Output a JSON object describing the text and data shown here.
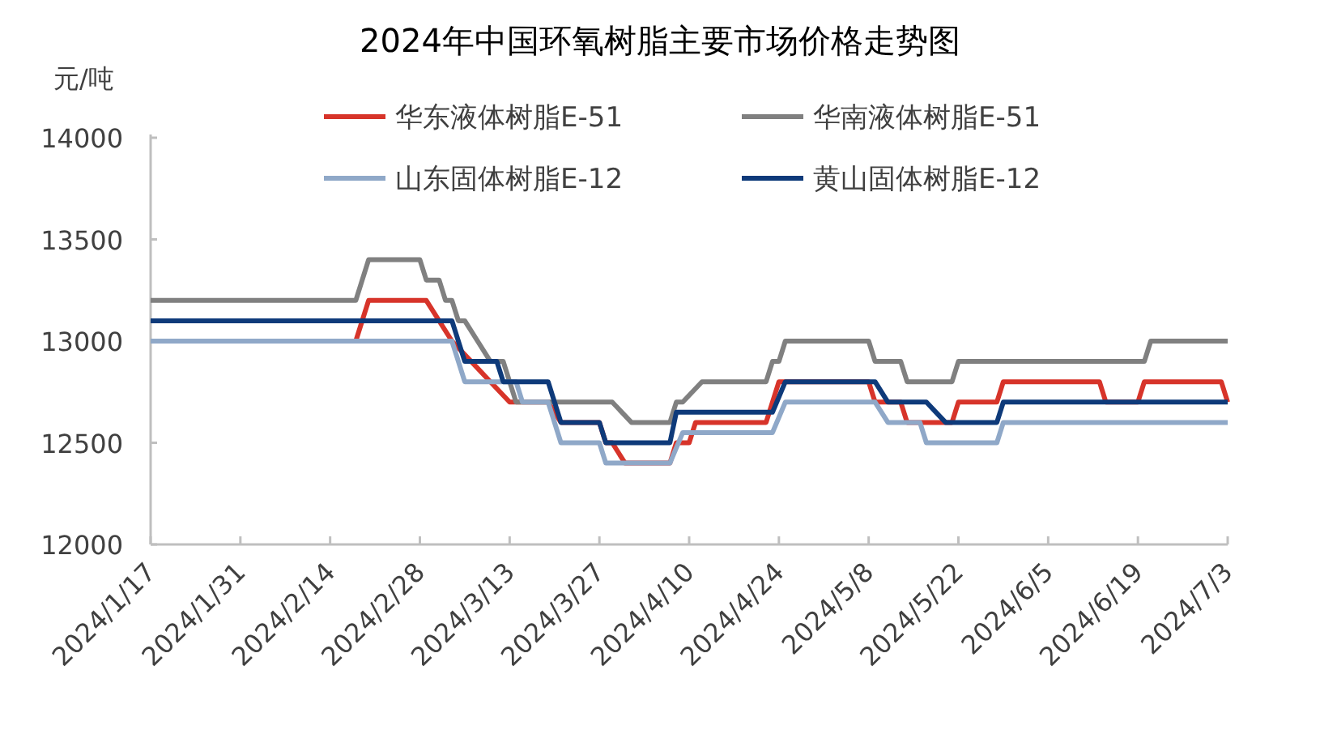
{
  "chart_data": {
    "type": "line",
    "title": "2024年中国环氧树脂主要市场价格走势图",
    "ylabel": "元/吨",
    "xlim": [
      "2024-01-17",
      "2024-07-03"
    ],
    "xticks": [
      {
        "value": "2024-01-17",
        "label": "2024/1/17"
      },
      {
        "value": "2024-01-31",
        "label": "2024/1/31"
      },
      {
        "value": "2024-02-14",
        "label": "2024/2/14"
      },
      {
        "value": "2024-02-28",
        "label": "2024/2/28"
      },
      {
        "value": "2024-03-13",
        "label": "2024/3/13"
      },
      {
        "value": "2024-03-27",
        "label": "2024/3/27"
      },
      {
        "value": "2024-04-10",
        "label": "2024/4/10"
      },
      {
        "value": "2024-04-24",
        "label": "2024/4/24"
      },
      {
        "value": "2024-05-08",
        "label": "2024/5/8"
      },
      {
        "value": "2024-05-22",
        "label": "2024/5/22"
      },
      {
        "value": "2024-06-05",
        "label": "2024/6/5"
      },
      {
        "value": "2024-06-19",
        "label": "2024/6/19"
      },
      {
        "value": "2024-07-03",
        "label": "2024/7/3"
      }
    ],
    "ylim": [
      12000,
      14000
    ],
    "yticks": [
      12000,
      12500,
      13000,
      13500,
      14000
    ],
    "legend": "top",
    "series": [
      {
        "name": "华东液体树脂E-51",
        "color": "#d7342a",
        "x": [
          "2024-02-18",
          "2024-02-20",
          "2024-02-29",
          "2024-03-04",
          "2024-03-07",
          "2024-03-10",
          "2024-03-13",
          "2024-03-19",
          "2024-03-21",
          "2024-03-27",
          "2024-03-28",
          "2024-03-29",
          "2024-03-31",
          "2024-04-07",
          "2024-04-08",
          "2024-04-10",
          "2024-04-11",
          "2024-04-22",
          "2024-04-24",
          "2024-05-08",
          "2024-05-09",
          "2024-05-13",
          "2024-05-14",
          "2024-05-21",
          "2024-05-22",
          "2024-05-28",
          "2024-05-29",
          "2024-06-13",
          "2024-06-14",
          "2024-06-19",
          "2024-06-20",
          "2024-07-02",
          "2024-07-03"
        ],
        "values": [
          13000,
          13200,
          13200,
          13000,
          12900,
          12800,
          12700,
          12700,
          12600,
          12600,
          12500,
          12500,
          12400,
          12400,
          12500,
          12500,
          12600,
          12600,
          12800,
          12800,
          12700,
          12700,
          12600,
          12600,
          12700,
          12700,
          12800,
          12800,
          12700,
          12700,
          12800,
          12800,
          12700
        ]
      },
      {
        "name": "华南液体树脂E-51",
        "color": "#808080",
        "x": [
          "2024-01-17",
          "2024-02-18",
          "2024-02-20",
          "2024-02-28",
          "2024-02-29",
          "2024-03-02",
          "2024-03-03",
          "2024-03-04",
          "2024-03-05",
          "2024-03-06",
          "2024-03-08",
          "2024-03-10",
          "2024-03-12",
          "2024-03-14",
          "2024-03-29",
          "2024-04-01",
          "2024-04-07",
          "2024-04-08",
          "2024-04-09",
          "2024-04-12",
          "2024-04-22",
          "2024-04-23",
          "2024-04-24",
          "2024-04-25",
          "2024-05-08",
          "2024-05-09",
          "2024-05-13",
          "2024-05-14",
          "2024-05-21",
          "2024-05-22",
          "2024-06-20",
          "2024-06-21",
          "2024-07-03"
        ],
        "values": [
          13200,
          13200,
          13400,
          13400,
          13300,
          13300,
          13200,
          13200,
          13100,
          13100,
          13000,
          12900,
          12900,
          12700,
          12700,
          12600,
          12600,
          12700,
          12700,
          12800,
          12800,
          12900,
          12900,
          13000,
          13000,
          12900,
          12900,
          12800,
          12800,
          12900,
          12900,
          13000,
          13000
        ]
      },
      {
        "name": "山东固体树脂E-12",
        "color": "#8fa8c8",
        "x": [
          "2024-01-17",
          "2024-03-04",
          "2024-03-06",
          "2024-03-14",
          "2024-03-15",
          "2024-03-19",
          "2024-03-21",
          "2024-03-27",
          "2024-03-28",
          "2024-04-07",
          "2024-04-09",
          "2024-04-23",
          "2024-04-25",
          "2024-05-09",
          "2024-05-11",
          "2024-05-16",
          "2024-05-17",
          "2024-05-28",
          "2024-05-29",
          "2024-07-03"
        ],
        "values": [
          13000,
          13000,
          12800,
          12800,
          12700,
          12700,
          12500,
          12500,
          12400,
          12400,
          12550,
          12550,
          12700,
          12700,
          12600,
          12600,
          12500,
          12500,
          12600,
          12600
        ]
      },
      {
        "name": "黄山固体树脂E-12",
        "color": "#0e3a7a",
        "x": [
          "2024-01-17",
          "2024-03-04",
          "2024-03-06",
          "2024-03-11",
          "2024-03-12",
          "2024-03-19",
          "2024-03-21",
          "2024-03-27",
          "2024-03-28",
          "2024-04-07",
          "2024-04-08",
          "2024-04-23",
          "2024-04-25",
          "2024-05-09",
          "2024-05-11",
          "2024-05-17",
          "2024-05-20",
          "2024-05-28",
          "2024-05-29",
          "2024-07-03"
        ],
        "values": [
          13100,
          13100,
          12900,
          12900,
          12800,
          12800,
          12600,
          12600,
          12500,
          12500,
          12650,
          12650,
          12800,
          12800,
          12700,
          12700,
          12600,
          12600,
          12700,
          12700
        ]
      }
    ]
  }
}
